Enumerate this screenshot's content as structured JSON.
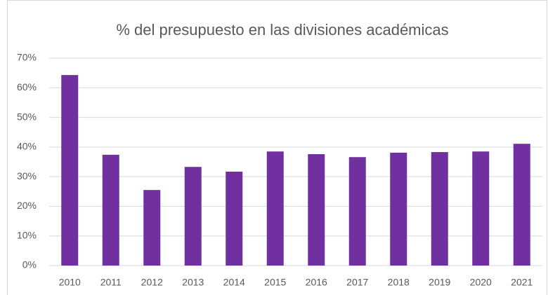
{
  "chart_data": {
    "type": "bar",
    "title": "% del presupuesto en las divisiones académicas",
    "categories": [
      "2010",
      "2011",
      "2012",
      "2013",
      "2014",
      "2015",
      "2016",
      "2017",
      "2018",
      "2019",
      "2020",
      "2021"
    ],
    "values": [
      64.3,
      37.4,
      25.5,
      33.3,
      31.7,
      38.5,
      37.6,
      36.6,
      38.1,
      38.3,
      38.5,
      41.1
    ],
    "color": "#7030a0",
    "ylim": [
      0,
      70
    ],
    "yticks": [
      {
        "value": 0,
        "label": "0%"
      },
      {
        "value": 10,
        "label": "10%"
      },
      {
        "value": 20,
        "label": "20%"
      },
      {
        "value": 30,
        "label": "30%"
      },
      {
        "value": 40,
        "label": "40%"
      },
      {
        "value": 50,
        "label": "50%"
      },
      {
        "value": 60,
        "label": "60%"
      },
      {
        "value": 70,
        "label": "70%"
      }
    ],
    "grid": true
  }
}
